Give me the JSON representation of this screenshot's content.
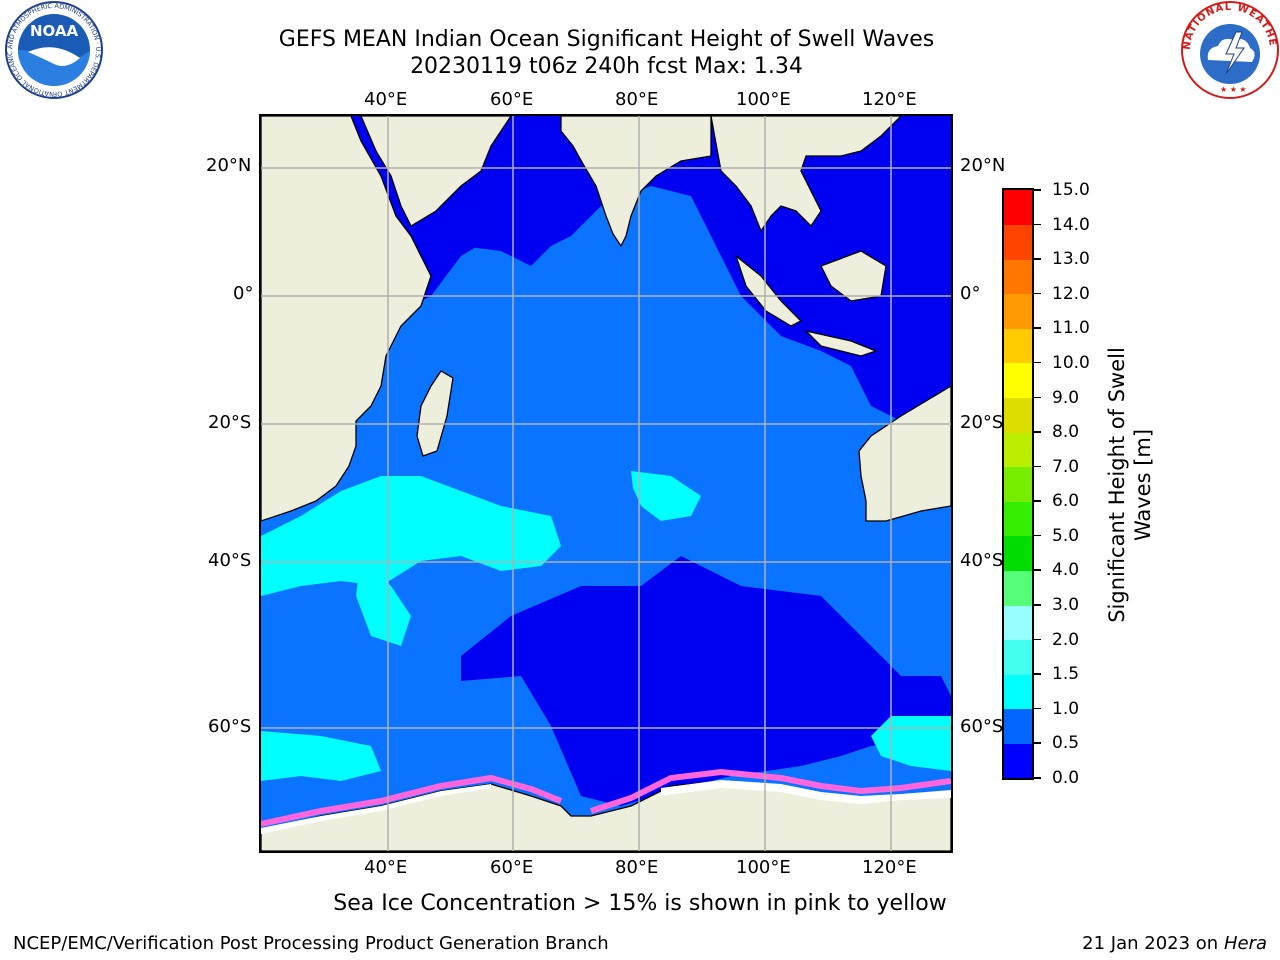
{
  "title": {
    "line1": "GEFS MEAN Indian Ocean Significant Height of Swell Waves",
    "line2": "20230119 t06z 240h fcst   Max: 1.34"
  },
  "map": {
    "lon_labels": [
      "40°E",
      "60°E",
      "80°E",
      "100°E",
      "120°E"
    ],
    "lat_labels": [
      "20°N",
      "0°",
      "20°S",
      "40°S",
      "60°S"
    ],
    "colors": {
      "land": "#eeeedc",
      "coastline": "#000000",
      "grid": "#b0b0b0",
      "sea_ice": "#ff66dd"
    }
  },
  "colorbar": {
    "title_line1": "Significant Height of Swell",
    "title_line2": "Waves [m]",
    "tick_labels": [
      "0.0",
      "0.5",
      "1.0",
      "1.5",
      "2.0",
      "3.0",
      "4.0",
      "5.0",
      "6.0",
      "7.0",
      "8.0",
      "9.0",
      "10.0",
      "11.0",
      "12.0",
      "13.0",
      "14.0",
      "15.0"
    ],
    "colors": [
      "#0000ff",
      "#0066ff",
      "#00ffff",
      "#44ffee",
      "#99ffff",
      "#55ff77",
      "#00dd00",
      "#33ee00",
      "#77ee00",
      "#bbee00",
      "#dddd00",
      "#ffff00",
      "#ffcc00",
      "#ff9900",
      "#ff7700",
      "#ff4400",
      "#ff0000"
    ]
  },
  "note": "Sea Ice Concentration > 15% is shown in pink to yellow",
  "footer": {
    "left": "NCEP/EMC/Verification Post Processing Product Generation Branch",
    "date": "21 Jan 2023 on ",
    "machine": "Hera"
  },
  "logos": {
    "left": "NOAA",
    "left_ring": "NATIONAL OCEANIC AND ATMOSPHERIC ADMINISTRATION · U.S. DEPARTMENT OF COMMERCE ·",
    "right_ring": "NATIONAL WEATHER SERVICE"
  }
}
